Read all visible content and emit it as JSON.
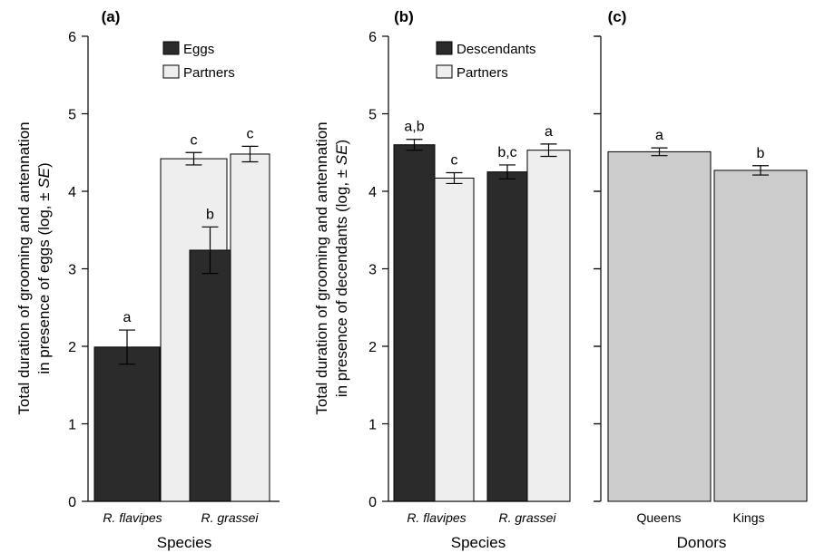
{
  "colors": {
    "dark": "#2b2b2b",
    "light": "#eeeeee",
    "grey": "#cccccc"
  },
  "chart_data": [
    {
      "type": "bar",
      "panel_label": "(a)",
      "xlabel": "Species",
      "ylabel_line1": "Total duration of grooming and antennation",
      "ylabel_line2_prefix": "in presence of eggs (log, ± ",
      "ylabel_line2_italic": "SE",
      "ylabel_line2_suffix": ")",
      "ylim": [
        0,
        6
      ],
      "yticks": [
        "0",
        "1",
        "2",
        "3",
        "4",
        "5",
        "6"
      ],
      "categories": [
        "R. flavipes",
        "R. grassei"
      ],
      "categories_italic": true,
      "legend_position": "top-center",
      "series": [
        {
          "name": "Eggs",
          "color": "#2b2b2b",
          "values": [
            1.99,
            3.24
          ],
          "errors": [
            0.22,
            0.3
          ],
          "labels": [
            "a",
            "b"
          ]
        },
        {
          "name": "Partners",
          "color": "#eeeeee",
          "values": [
            4.42,
            4.48
          ],
          "errors": [
            0.08,
            0.1
          ],
          "labels": [
            "c",
            "c"
          ]
        }
      ]
    },
    {
      "type": "bar",
      "panel_label": "(b)",
      "xlabel": "Species",
      "ylabel_line1": "Total duration of grooming and antennation",
      "ylabel_line2_prefix": "in presence of decendants (log, ± ",
      "ylabel_line2_italic": "SE",
      "ylabel_line2_suffix": ")",
      "ylim": [
        0,
        6
      ],
      "yticks": [
        "0",
        "1",
        "2",
        "3",
        "4",
        "5",
        "6"
      ],
      "categories": [
        "R. flavipes",
        "R. grassei"
      ],
      "categories_italic": true,
      "legend_position": "top-left",
      "series": [
        {
          "name": "Descendants",
          "color": "#2b2b2b",
          "values": [
            4.6,
            4.25
          ],
          "errors": [
            0.07,
            0.09
          ],
          "labels": [
            "a,b",
            "b,c"
          ]
        },
        {
          "name": "Partners",
          "color": "#eeeeee",
          "values": [
            4.17,
            4.53
          ],
          "errors": [
            0.07,
            0.08
          ],
          "labels": [
            "c",
            "a"
          ]
        }
      ]
    },
    {
      "type": "bar",
      "panel_label": "(c)",
      "xlabel": "Donors",
      "ylim": [
        0,
        6
      ],
      "categories": [
        "Queens",
        "Kings"
      ],
      "categories_italic": false,
      "series": [
        {
          "name": "",
          "color": "#cccccc",
          "values": [
            4.51,
            4.27
          ],
          "errors": [
            0.05,
            0.06
          ],
          "labels": [
            "a",
            "b"
          ]
        }
      ]
    }
  ]
}
